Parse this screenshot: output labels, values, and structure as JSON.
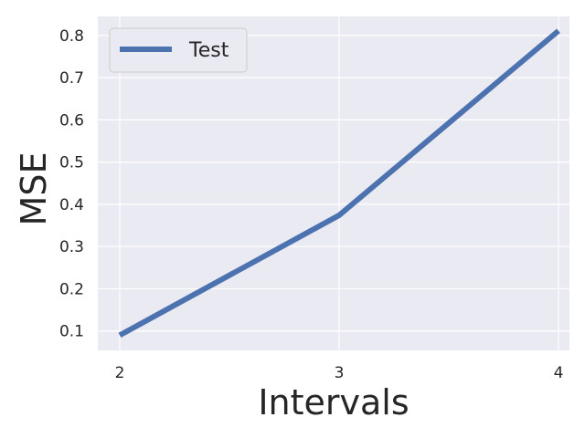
{
  "chart_data": {
    "type": "line",
    "title": "",
    "xlabel": "Intervals",
    "ylabel": "MSE",
    "x": [
      2,
      3,
      4
    ],
    "xticks": [
      "2",
      "3",
      "4"
    ],
    "yticks": [
      "0.1",
      "0.2",
      "0.3",
      "0.4",
      "0.5",
      "0.6",
      "0.7",
      "0.8"
    ],
    "xlim": [
      1.9,
      4.05
    ],
    "ylim": [
      0.054,
      0.845
    ],
    "grid": true,
    "legend_position": "top-left",
    "series": [
      {
        "name": "Test",
        "values": [
          0.09,
          0.374,
          0.811
        ],
        "color": "#4c72b0"
      }
    ],
    "plot_background": "#eaeaf2"
  }
}
